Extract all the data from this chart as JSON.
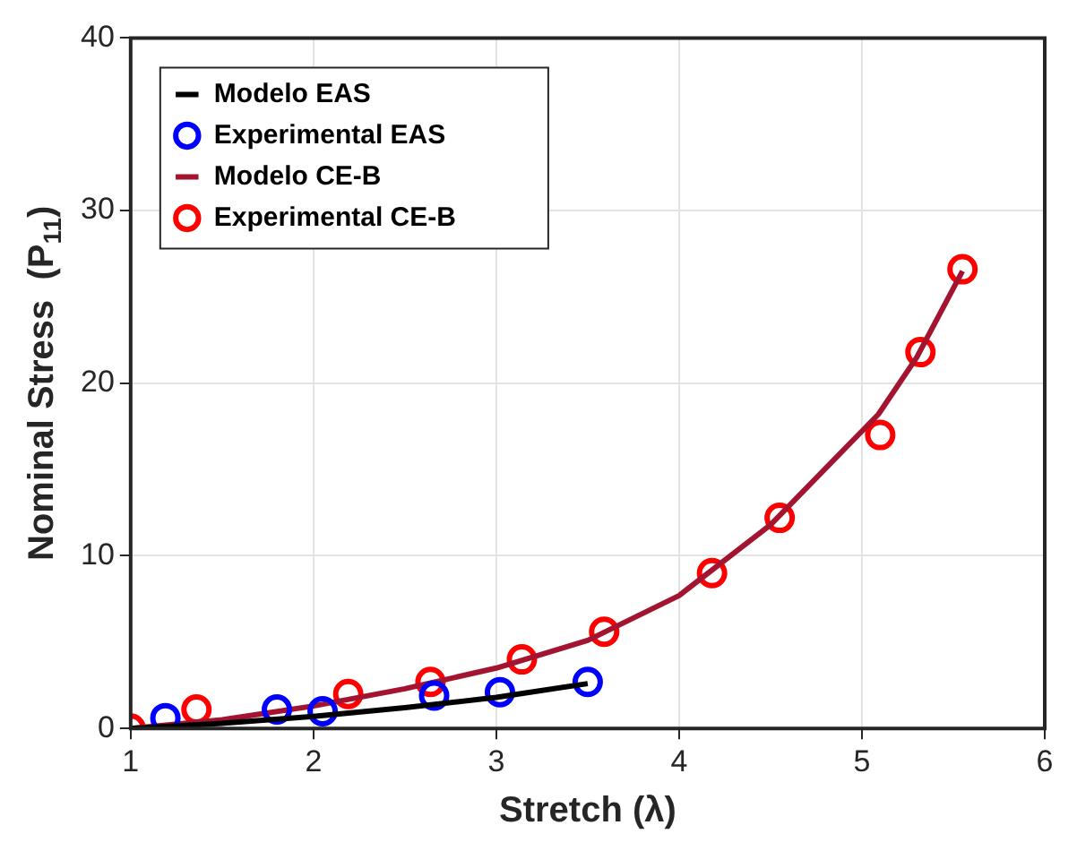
{
  "chart_data": {
    "type": "scatter",
    "xlabel": "Stretch (λ)",
    "ylabel": "Nominal Stress  (P$_{11}$)",
    "xlim": [
      1,
      6
    ],
    "xticks": [
      1,
      2,
      3,
      4,
      5,
      6
    ],
    "ylim": [
      0,
      40
    ],
    "yticks": [
      0,
      10,
      20,
      30,
      40
    ],
    "grid": true,
    "legend": "top left",
    "series": [
      {
        "name": "Modelo EAS",
        "type": "line",
        "color": "#000000",
        "marker": "none",
        "x": [
          1,
          1.5,
          2,
          2.5,
          3,
          3.5
        ],
        "values": [
          0,
          0.3,
          0.7,
          1.2,
          1.8,
          2.6
        ]
      },
      {
        "name": "Experimental EAS",
        "type": "scatter",
        "color": "#0000ff",
        "marker": "circle",
        "x": [
          1.19,
          1.8,
          2.05,
          2.66,
          3.02,
          3.5
        ],
        "values": [
          0.6,
          1.1,
          1.0,
          1.9,
          2.1,
          2.7
        ]
      },
      {
        "name": "Modelo CE-B",
        "type": "line",
        "color": "#a2142f",
        "marker": "none",
        "x": [
          1,
          1.5,
          2,
          2.5,
          3,
          3.5,
          4,
          4.5,
          5.09,
          5.3,
          5.55
        ],
        "values": [
          0,
          0.5,
          1.3,
          2.3,
          3.5,
          5.1,
          7.7,
          11.8,
          18.2,
          21.5,
          26.5
        ]
      },
      {
        "name": "Experimental CE-B",
        "type": "scatter",
        "color": "#ff0000",
        "marker": "circle",
        "x": [
          1,
          1.36,
          2.19,
          2.64,
          3.14,
          3.59,
          4.18,
          4.55,
          5.1,
          5.32,
          5.55
        ],
        "values": [
          0,
          1.1,
          2.0,
          2.7,
          4.0,
          5.6,
          9.0,
          12.2,
          17.0,
          21.8,
          26.6
        ]
      }
    ]
  }
}
